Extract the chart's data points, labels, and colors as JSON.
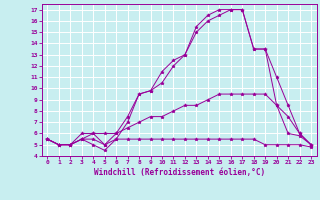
{
  "xlabel": "Windchill (Refroidissement éolien,°C)",
  "background_color": "#c8eef0",
  "line_color": "#990099",
  "grid_color": "#ffffff",
  "xlim": [
    -0.5,
    23.5
  ],
  "ylim": [
    4,
    17.5
  ],
  "xticks": [
    0,
    1,
    2,
    3,
    4,
    5,
    6,
    7,
    8,
    9,
    10,
    11,
    12,
    13,
    14,
    15,
    16,
    17,
    18,
    19,
    20,
    21,
    22,
    23
  ],
  "yticks": [
    4,
    5,
    6,
    7,
    8,
    9,
    10,
    11,
    12,
    13,
    14,
    15,
    16,
    17
  ],
  "lines": [
    {
      "x": [
        0,
        1,
        2,
        3,
        4,
        5,
        6,
        7,
        8,
        9,
        10,
        11,
        12,
        13,
        14,
        15,
        16,
        17,
        18,
        19,
        20,
        21,
        22,
        23
      ],
      "y": [
        5.5,
        5.0,
        5.0,
        5.5,
        5.0,
        4.5,
        5.5,
        5.5,
        5.5,
        5.5,
        5.5,
        5.5,
        5.5,
        5.5,
        5.5,
        5.5,
        5.5,
        5.5,
        5.5,
        5.0,
        5.0,
        5.0,
        5.0,
        4.8
      ]
    },
    {
      "x": [
        0,
        1,
        2,
        3,
        4,
        5,
        6,
        7,
        8,
        9,
        10,
        11,
        12,
        13,
        14,
        15,
        16,
        17,
        18,
        19,
        20,
        21,
        22,
        23
      ],
      "y": [
        5.5,
        5.0,
        5.0,
        5.5,
        5.5,
        5.0,
        6.0,
        6.5,
        7.0,
        7.5,
        7.5,
        8.0,
        8.5,
        8.5,
        9.0,
        9.5,
        9.5,
        9.5,
        9.5,
        9.5,
        8.5,
        7.5,
        6.0,
        5.0
      ]
    },
    {
      "x": [
        0,
        1,
        2,
        3,
        4,
        5,
        6,
        7,
        8,
        9,
        10,
        11,
        12,
        13,
        14,
        15,
        16,
        17,
        18,
        19,
        20,
        21,
        22,
        23
      ],
      "y": [
        5.5,
        5.0,
        5.0,
        6.0,
        6.0,
        5.0,
        5.5,
        7.0,
        9.5,
        9.8,
        10.5,
        12.0,
        13.0,
        15.0,
        16.0,
        16.5,
        17.0,
        17.0,
        13.5,
        13.5,
        11.0,
        8.5,
        6.0,
        5.0
      ]
    },
    {
      "x": [
        0,
        1,
        2,
        3,
        4,
        5,
        6,
        7,
        8,
        9,
        10,
        11,
        12,
        13,
        14,
        15,
        16,
        17,
        18,
        19,
        20,
        21,
        22,
        23
      ],
      "y": [
        5.5,
        5.0,
        5.0,
        5.5,
        6.0,
        6.0,
        6.0,
        7.5,
        9.5,
        9.8,
        11.5,
        12.5,
        13.0,
        15.5,
        16.5,
        17.0,
        17.0,
        17.0,
        13.5,
        13.5,
        8.5,
        6.0,
        5.8,
        5.0
      ]
    }
  ]
}
